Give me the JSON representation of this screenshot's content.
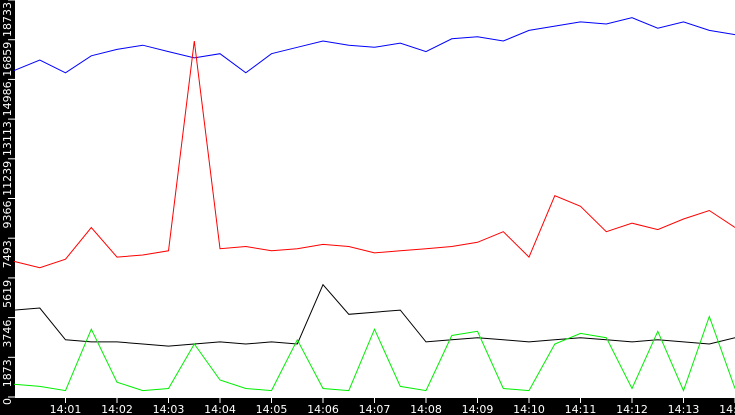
{
  "chart_data": {
    "type": "line",
    "title": "",
    "xlabel": "",
    "ylabel": "",
    "ylim": [
      0,
      18733
    ],
    "grid": false,
    "legend": "none",
    "y_ticks": [
      "0",
      "1873",
      "3746",
      "5619",
      "7493",
      "9366",
      "11239",
      "13113",
      "14986",
      "16859",
      "18733"
    ],
    "x_ticks": [
      "14:01",
      "14:02",
      "14:03",
      "14:04",
      "14:05",
      "14:06",
      "14:07",
      "14:08",
      "14:09",
      "14:10",
      "14:11",
      "14:12",
      "14:13",
      "14:14",
      "14"
    ],
    "x": [
      "14:00:00",
      "14:00:30",
      "14:01:00",
      "14:01:30",
      "14:02:00",
      "14:02:30",
      "14:03:00",
      "14:03:30",
      "14:04:00",
      "14:04:30",
      "14:05:00",
      "14:05:30",
      "14:06:00",
      "14:06:30",
      "14:07:00",
      "14:07:30",
      "14:08:00",
      "14:08:30",
      "14:09:00",
      "14:09:30",
      "14:10:00",
      "14:10:30",
      "14:11:00",
      "14:11:30",
      "14:12:00",
      "14:12:30",
      "14:13:00",
      "14:13:30",
      "14:14:00"
    ],
    "series": [
      {
        "color": "#0000ff",
        "values": [
          15400,
          15900,
          15300,
          16100,
          16400,
          16600,
          16300,
          16000,
          16200,
          15300,
          16200,
          16500,
          16800,
          16600,
          16500,
          16700,
          16300,
          16900,
          17000,
          16800,
          17300,
          17500,
          17700,
          17600,
          17900,
          17400,
          17700,
          17300,
          17100
        ]
      },
      {
        "color": "#ff0000",
        "values": [
          6400,
          6100,
          6500,
          8000,
          6600,
          6700,
          6900,
          16800,
          7000,
          7100,
          6900,
          7000,
          7200,
          7100,
          6800,
          6900,
          7000,
          7100,
          7300,
          7800,
          6600,
          9500,
          9000,
          7800,
          8200,
          7900,
          8400,
          8800,
          8000
        ]
      },
      {
        "color": "#000000",
        "values": [
          4100,
          4200,
          2700,
          2600,
          2600,
          2500,
          2400,
          2500,
          2600,
          2500,
          2600,
          2500,
          5300,
          3900,
          4000,
          4100,
          2600,
          2700,
          2800,
          2700,
          2600,
          2700,
          2800,
          2700,
          2600,
          2700,
          2600,
          2500,
          2800
        ]
      },
      {
        "color": "#00ee00",
        "values": [
          600,
          500,
          300,
          3200,
          700,
          300,
          400,
          2500,
          800,
          400,
          300,
          2700,
          400,
          300,
          3200,
          500,
          300,
          2900,
          3100,
          400,
          300,
          2500,
          3000,
          2800,
          400,
          3100,
          300,
          3800,
          400
        ]
      }
    ]
  }
}
